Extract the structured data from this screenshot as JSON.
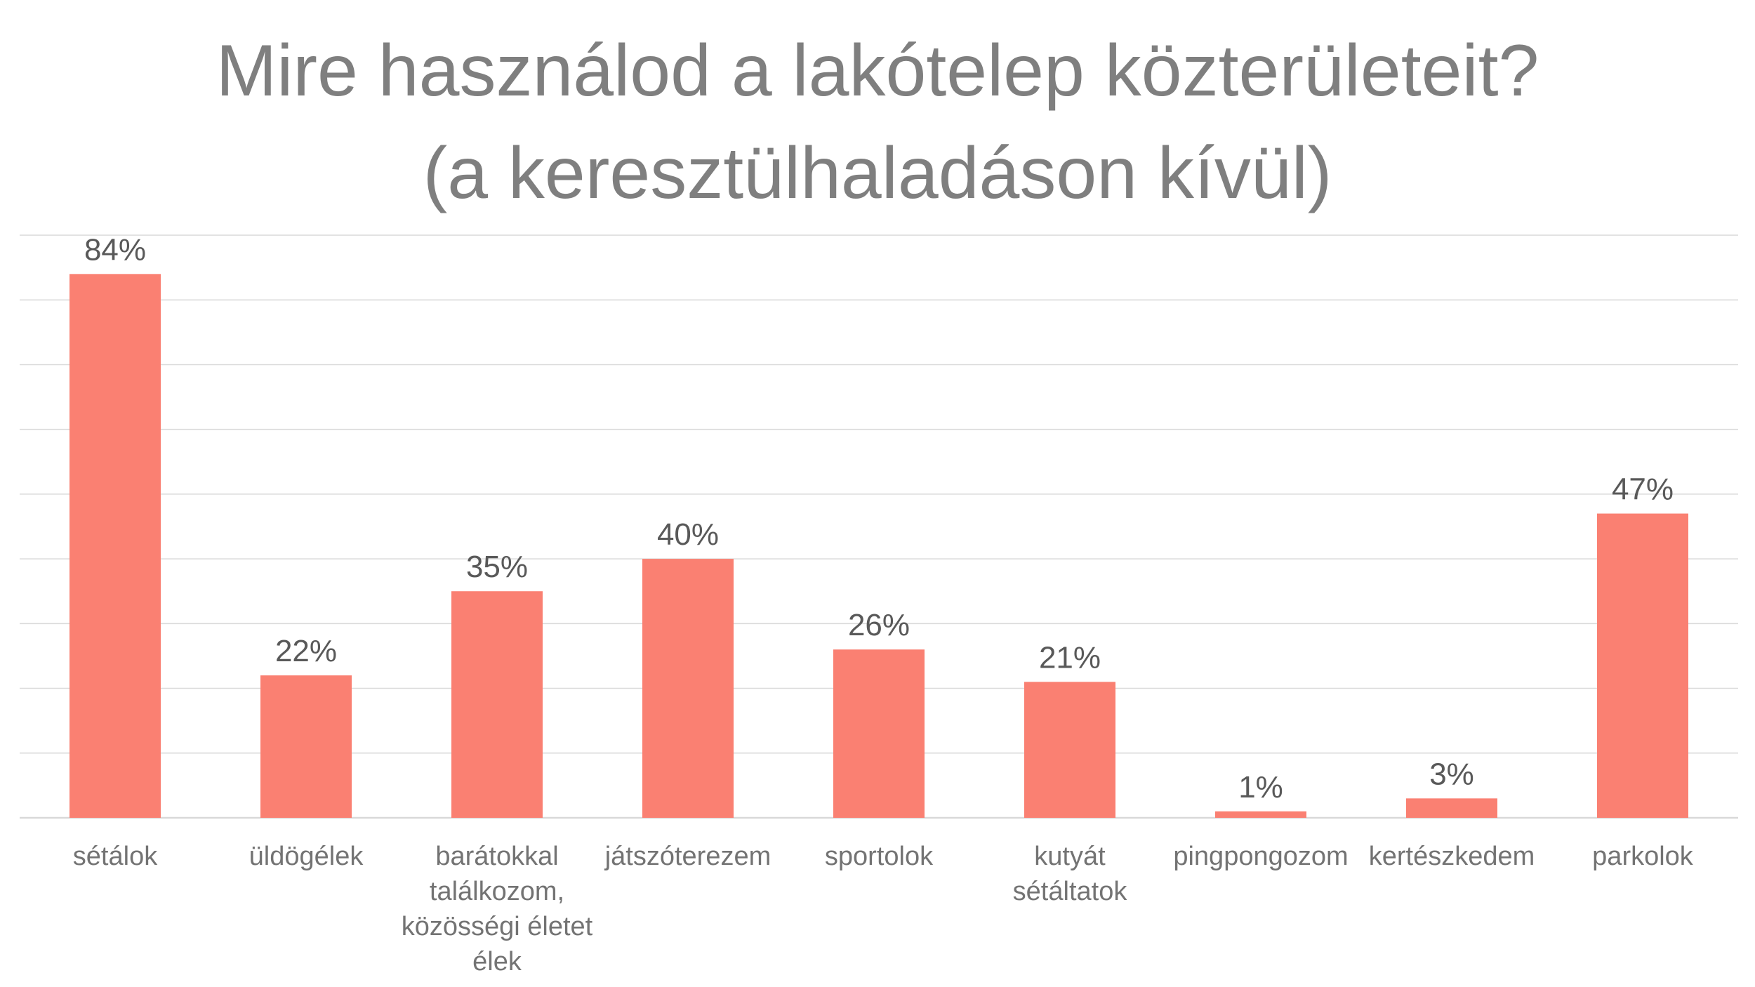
{
  "chart_data": {
    "type": "bar",
    "title_lines": [
      "Mire használod a lakótelep közterületeit?",
      "(a keresztülhaladáson kívül)"
    ],
    "categories": [
      [
        "sétálok"
      ],
      [
        "üldögélek"
      ],
      [
        "barátokkal",
        "találkozom,",
        "közösségi életet",
        "élek"
      ],
      [
        "játszóterezem"
      ],
      [
        "sportolok"
      ],
      [
        "kutyát",
        "sétáltatok"
      ],
      [
        "pingpongozom"
      ],
      [
        "kertészkedem"
      ],
      [
        "parkolok"
      ]
    ],
    "values": [
      84,
      22,
      35,
      40,
      26,
      21,
      1,
      3,
      47
    ],
    "value_labels": [
      "84%",
      "22%",
      "35%",
      "40%",
      "26%",
      "21%",
      "1%",
      "3%",
      "47%"
    ],
    "ylim": [
      0,
      90
    ],
    "grid_step": 10,
    "grid": true,
    "legend": "none",
    "bar_color": "#fa8072",
    "grid_color": "#d9d9d9"
  }
}
